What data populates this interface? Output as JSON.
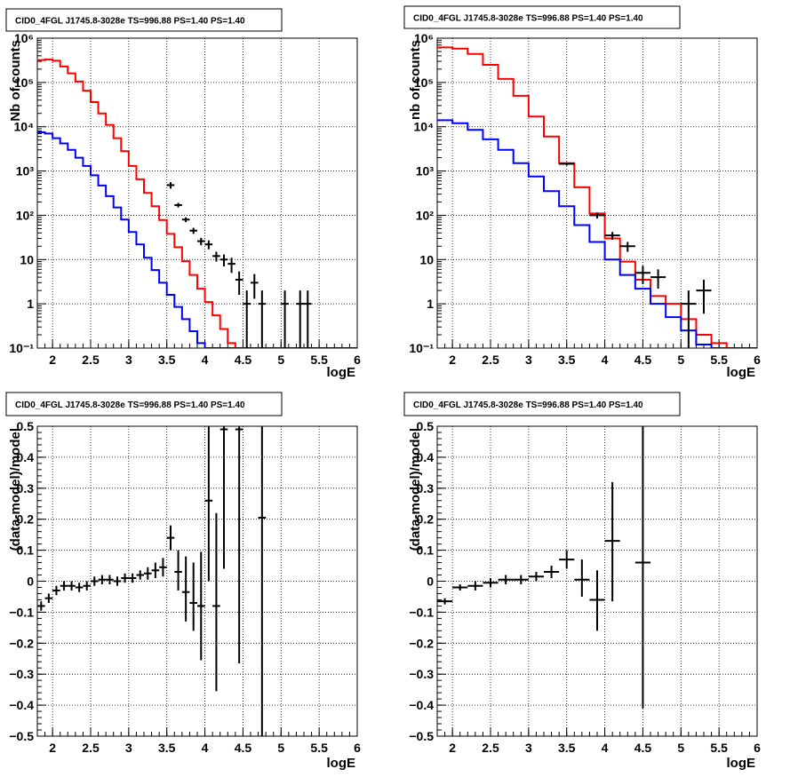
{
  "chart_data": [
    {
      "type": "line",
      "title": "CID0_4FGL J1745.8-3028e TS=996.88 PS=1.40 PS=1.40",
      "xlabel": "logE",
      "ylabel": "Nb of counts",
      "xlim": [
        1.8,
        6.0
      ],
      "ylim": [
        0.1,
        1000000
      ],
      "yscale": "log",
      "grid": true,
      "xticks": [
        "2",
        "2.5",
        "3",
        "3.5",
        "4",
        "4.5",
        "5",
        "5.5",
        "6"
      ],
      "yticks": [
        "10⁻¹",
        "1",
        "10",
        "10²",
        "10³",
        "10⁴",
        "10⁵",
        "10⁶"
      ],
      "bin_width": 0.1,
      "series": [
        {
          "color": "#ff0000",
          "style": "step",
          "x": [
            1.85,
            1.95,
            2.05,
            2.15,
            2.25,
            2.35,
            2.45,
            2.55,
            2.65,
            2.75,
            2.85,
            2.95,
            3.05,
            3.15,
            3.25,
            3.35,
            3.45,
            3.55,
            3.65,
            3.75,
            3.85,
            3.95,
            4.05,
            4.15,
            4.25,
            4.35,
            4.45,
            4.55,
            4.65,
            4.75,
            4.85,
            4.95,
            5.05,
            5.15,
            5.25,
            5.35,
            5.45,
            5.55,
            5.65,
            5.75,
            5.85,
            5.95
          ],
          "y": [
            320000,
            330000,
            310000,
            230000,
            160000,
            105000,
            65000,
            36000,
            20000,
            11000,
            5500,
            2800,
            1300,
            650,
            320,
            160,
            78,
            38,
            19,
            9.2,
            4.5,
            2.2,
            1.1,
            0.55,
            0.27,
            0.13,
            0.1,
            0.1,
            0.1,
            0.1,
            0.1,
            0.1,
            0.1,
            0.1,
            0.1,
            0.1,
            0.1,
            0.1,
            0.1,
            0.1,
            0.1,
            0.1
          ]
        },
        {
          "color": "#0000ff",
          "style": "step",
          "x": [
            1.85,
            1.95,
            2.05,
            2.15,
            2.25,
            2.35,
            2.45,
            2.55,
            2.65,
            2.75,
            2.85,
            2.95,
            3.05,
            3.15,
            3.25,
            3.35,
            3.45,
            3.55,
            3.65,
            3.75,
            3.85,
            3.95,
            4.05,
            4.15,
            4.25,
            4.35,
            4.45,
            4.55,
            4.65,
            4.75,
            4.85,
            4.95,
            5.05,
            5.15,
            5.25,
            5.35,
            5.45,
            5.55,
            5.65,
            5.75,
            5.85,
            5.95
          ],
          "y": [
            7500,
            7000,
            5500,
            4200,
            3000,
            2000,
            1300,
            800,
            470,
            270,
            150,
            80,
            42,
            22,
            11,
            5.8,
            3.0,
            1.6,
            0.85,
            0.45,
            0.24,
            0.13,
            0.1,
            0.1,
            0.1,
            0.1,
            0.1,
            0.1,
            0.1,
            0.1,
            0.1,
            0.1,
            0.1,
            0.1,
            0.1,
            0.1,
            0.1,
            0.1,
            0.1,
            0.1,
            0.1,
            0.1
          ]
        },
        {
          "color": "#000000",
          "style": "errorbar",
          "points": [
            {
              "x": 3.55,
              "y": 480,
              "lo": 400,
              "hi": 560
            },
            {
              "x": 3.65,
              "y": 170,
              "lo": 150,
              "hi": 190
            },
            {
              "x": 3.75,
              "y": 80,
              "lo": 70,
              "hi": 90
            },
            {
              "x": 3.85,
              "y": 45,
              "lo": 38,
              "hi": 52
            },
            {
              "x": 3.95,
              "y": 26,
              "lo": 21,
              "hi": 31
            },
            {
              "x": 4.05,
              "y": 22,
              "lo": 17,
              "hi": 27
            },
            {
              "x": 4.15,
              "y": 12,
              "lo": 9,
              "hi": 15
            },
            {
              "x": 4.25,
              "y": 10,
              "lo": 7,
              "hi": 13
            },
            {
              "x": 4.35,
              "y": 8,
              "lo": 5,
              "hi": 11
            },
            {
              "x": 4.45,
              "y": 3.5,
              "lo": 1.6,
              "hi": 5.4
            },
            {
              "x": 4.55,
              "y": 1.0,
              "lo": 0.1,
              "hi": 2.0
            },
            {
              "x": 4.65,
              "y": 3.0,
              "lo": 1.3,
              "hi": 4.7
            },
            {
              "x": 4.75,
              "y": 1.0,
              "lo": 0.1,
              "hi": 2.0
            },
            {
              "x": 5.05,
              "y": 1.0,
              "lo": 0.1,
              "hi": 2.0
            },
            {
              "x": 5.25,
              "y": 1.0,
              "lo": 0.1,
              "hi": 2.0
            },
            {
              "x": 5.35,
              "y": 1.0,
              "lo": 0.1,
              "hi": 2.0
            }
          ]
        }
      ]
    },
    {
      "type": "line",
      "title": "CID0_4FGL J1745.8-3028e TS=996.88 PS=1.40 PS=1.40",
      "xlabel": "logE",
      "ylabel": "nb of counts",
      "xlim": [
        1.8,
        6.0
      ],
      "ylim": [
        0.1,
        1000000
      ],
      "yscale": "log",
      "grid": true,
      "xticks": [
        "2",
        "2.5",
        "3",
        "3.5",
        "4",
        "4.5",
        "5",
        "5.5",
        "6"
      ],
      "yticks": [
        "10⁻¹",
        "1",
        "10",
        "10²",
        "10³",
        "10⁴",
        "10⁵",
        "10⁶"
      ],
      "bin_width": 0.2,
      "series": [
        {
          "color": "#ff0000",
          "style": "step",
          "x": [
            1.9,
            2.1,
            2.3,
            2.5,
            2.7,
            2.9,
            3.1,
            3.3,
            3.5,
            3.7,
            3.9,
            4.1,
            4.3,
            4.5,
            4.7,
            4.9,
            5.1,
            5.3,
            5.5,
            5.7,
            5.9
          ],
          "y": [
            620000,
            580000,
            440000,
            250000,
            120000,
            50000,
            17000,
            6000,
            1500,
            430,
            110,
            30,
            9,
            3.5,
            1.5,
            1.0,
            0.45,
            0.2,
            0.13,
            0.1,
            0.1
          ]
        },
        {
          "color": "#0000ff",
          "style": "step",
          "x": [
            1.9,
            2.1,
            2.3,
            2.5,
            2.7,
            2.9,
            3.1,
            3.3,
            3.5,
            3.7,
            3.9,
            4.1,
            4.3,
            4.5,
            4.7,
            4.9,
            5.1,
            5.3,
            5.5,
            5.7,
            5.9
          ],
          "y": [
            14000,
            12000,
            8500,
            5200,
            3000,
            1500,
            750,
            350,
            160,
            60,
            25,
            10,
            4.5,
            2.2,
            1.0,
            0.5,
            0.25,
            0.12,
            0.1,
            0.1,
            0.1
          ]
        },
        {
          "color": "#000000",
          "style": "errorbar",
          "points": [
            {
              "x": 3.5,
              "y": 1450,
              "lo": 1330,
              "hi": 1570
            },
            {
              "x": 3.9,
              "y": 100,
              "lo": 85,
              "hi": 115
            },
            {
              "x": 4.1,
              "y": 35,
              "lo": 28,
              "hi": 42
            },
            {
              "x": 4.3,
              "y": 20,
              "lo": 15,
              "hi": 25
            },
            {
              "x": 4.5,
              "y": 5,
              "lo": 2.8,
              "hi": 7.2
            },
            {
              "x": 4.7,
              "y": 4,
              "lo": 2.2,
              "hi": 6
            },
            {
              "x": 5.1,
              "y": 1,
              "lo": 0.1,
              "hi": 2
            },
            {
              "x": 5.3,
              "y": 2,
              "lo": 0.6,
              "hi": 3.5
            }
          ]
        }
      ]
    },
    {
      "type": "scatter",
      "title": "CID0_4FGL J1745.8-3028e TS=996.88 PS=1.40 PS=1.40",
      "xlabel": "logE",
      "ylabel": "(data-model)/model",
      "xlim": [
        1.8,
        6.0
      ],
      "ylim": [
        -0.5,
        0.5
      ],
      "grid": true,
      "xticks": [
        "2",
        "2.5",
        "3",
        "3.5",
        "4",
        "4.5",
        "5",
        "5.5",
        "6"
      ],
      "yticks": [
        "−0.5",
        "−0.4",
        "−0.3",
        "−0.2",
        "−0.1",
        "0",
        "0.1",
        "0.2",
        "0.3",
        "0.4",
        "0.5"
      ],
      "xerr": 0.05,
      "points": [
        {
          "x": 1.85,
          "y": -0.08,
          "lo": -0.095,
          "hi": -0.065
        },
        {
          "x": 1.95,
          "y": -0.055,
          "lo": -0.07,
          "hi": -0.04
        },
        {
          "x": 2.05,
          "y": -0.03,
          "lo": -0.045,
          "hi": -0.015
        },
        {
          "x": 2.15,
          "y": -0.015,
          "lo": -0.03,
          "hi": 0.0
        },
        {
          "x": 2.25,
          "y": -0.015,
          "lo": -0.03,
          "hi": 0.0
        },
        {
          "x": 2.35,
          "y": -0.02,
          "lo": -0.035,
          "hi": -0.005
        },
        {
          "x": 2.45,
          "y": -0.015,
          "lo": -0.03,
          "hi": 0.0
        },
        {
          "x": 2.55,
          "y": 0.0,
          "lo": -0.015,
          "hi": 0.015
        },
        {
          "x": 2.65,
          "y": 0.005,
          "lo": -0.01,
          "hi": 0.02
        },
        {
          "x": 2.75,
          "y": 0.005,
          "lo": -0.01,
          "hi": 0.02
        },
        {
          "x": 2.85,
          "y": 0.0,
          "lo": -0.015,
          "hi": 0.015
        },
        {
          "x": 2.95,
          "y": 0.01,
          "lo": -0.005,
          "hi": 0.025
        },
        {
          "x": 3.05,
          "y": 0.01,
          "lo": -0.005,
          "hi": 0.025
        },
        {
          "x": 3.15,
          "y": 0.02,
          "lo": 0.005,
          "hi": 0.035
        },
        {
          "x": 3.25,
          "y": 0.025,
          "lo": 0.005,
          "hi": 0.045
        },
        {
          "x": 3.35,
          "y": 0.035,
          "lo": 0.01,
          "hi": 0.06
        },
        {
          "x": 3.45,
          "y": 0.045,
          "lo": 0.015,
          "hi": 0.075
        },
        {
          "x": 3.55,
          "y": 0.14,
          "lo": 0.1,
          "hi": 0.18
        },
        {
          "x": 3.65,
          "y": 0.03,
          "lo": -0.03,
          "hi": 0.1
        },
        {
          "x": 3.75,
          "y": -0.035,
          "lo": -0.13,
          "hi": 0.08
        },
        {
          "x": 3.85,
          "y": -0.07,
          "lo": -0.16,
          "hi": 0.06
        },
        {
          "x": 3.95,
          "y": -0.08,
          "lo": -0.255,
          "hi": 0.095
        },
        {
          "x": 4.05,
          "y": 0.26,
          "lo": 0.0,
          "hi": 0.5
        },
        {
          "x": 4.15,
          "y": -0.08,
          "lo": -0.355,
          "hi": 0.22
        },
        {
          "x": 4.25,
          "y": 0.49,
          "lo": 0.04,
          "hi": 0.5
        },
        {
          "x": 4.45,
          "y": 0.49,
          "lo": -0.265,
          "hi": 0.5
        },
        {
          "x": 4.75,
          "y": 0.205,
          "lo": -0.5,
          "hi": 0.5
        }
      ]
    },
    {
      "type": "scatter",
      "title": "CID0_4FGL J1745.8-3028e TS=996.88 PS=1.40 PS=1.40",
      "xlabel": "logE",
      "ylabel": "(data-model)/model",
      "xlim": [
        1.8,
        6.0
      ],
      "ylim": [
        -0.5,
        0.5
      ],
      "grid": true,
      "xticks": [
        "2",
        "2.5",
        "3",
        "3.5",
        "4",
        "4.5",
        "5",
        "5.5",
        "6"
      ],
      "yticks": [
        "−0.5",
        "−0.4",
        "−0.3",
        "−0.2",
        "−0.1",
        "0",
        "0.1",
        "0.2",
        "0.3",
        "0.4",
        "0.5"
      ],
      "xerr": 0.1,
      "points": [
        {
          "x": 1.9,
          "y": -0.065,
          "lo": -0.075,
          "hi": -0.055
        },
        {
          "x": 2.1,
          "y": -0.02,
          "lo": -0.03,
          "hi": -0.01
        },
        {
          "x": 2.3,
          "y": -0.015,
          "lo": -0.03,
          "hi": 0.0
        },
        {
          "x": 2.5,
          "y": -0.005,
          "lo": -0.02,
          "hi": 0.01
        },
        {
          "x": 2.7,
          "y": 0.005,
          "lo": -0.01,
          "hi": 0.02
        },
        {
          "x": 2.9,
          "y": 0.005,
          "lo": -0.01,
          "hi": 0.02
        },
        {
          "x": 3.1,
          "y": 0.015,
          "lo": 0.0,
          "hi": 0.03
        },
        {
          "x": 3.3,
          "y": 0.03,
          "lo": 0.01,
          "hi": 0.05
        },
        {
          "x": 3.5,
          "y": 0.07,
          "lo": 0.04,
          "hi": 0.1
        },
        {
          "x": 3.7,
          "y": 0.005,
          "lo": -0.05,
          "hi": 0.07
        },
        {
          "x": 3.9,
          "y": -0.06,
          "lo": -0.16,
          "hi": 0.035
        },
        {
          "x": 4.1,
          "y": 0.13,
          "lo": -0.065,
          "hi": 0.32
        },
        {
          "x": 4.5,
          "y": 0.06,
          "lo": -0.41,
          "hi": 0.5
        }
      ]
    }
  ]
}
